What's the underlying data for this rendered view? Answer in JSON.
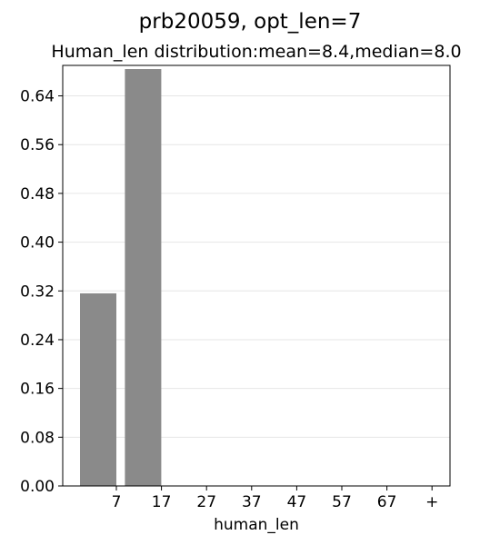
{
  "chart_data": {
    "type": "bar",
    "suptitle": "prb20059, opt_len=7",
    "title": "Human_len distribution:mean=8.4,median=8.0",
    "xlabel": "human_len",
    "ylabel": "",
    "x_tick_labels": [
      "7",
      "17",
      "27",
      "37",
      "47",
      "57",
      "67",
      "+"
    ],
    "y_ticks": [
      0.0,
      0.08,
      0.16,
      0.24,
      0.32,
      0.4,
      0.48,
      0.56,
      0.64
    ],
    "y_tick_labels": [
      "0.00",
      "0.08",
      "0.16",
      "0.24",
      "0.32",
      "0.40",
      "0.48",
      "0.56",
      "0.64"
    ],
    "ylim": [
      0,
      0.69
    ],
    "grid": "horizontal",
    "bars": [
      {
        "bin_index": 0,
        "value": 0.316
      },
      {
        "bin_index": 1,
        "value": 0.684
      }
    ],
    "bar_color": "#8a8a8a",
    "grid_color": "#e6e6e6"
  }
}
